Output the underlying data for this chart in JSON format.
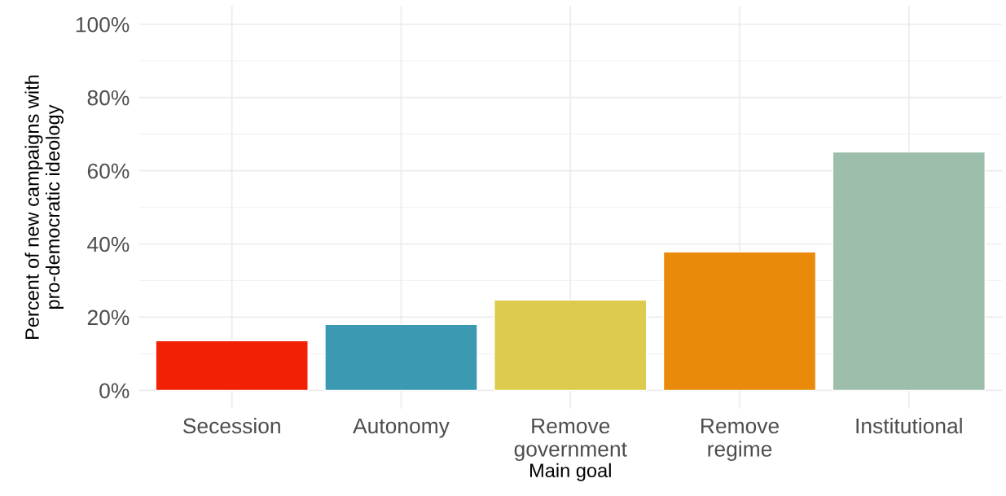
{
  "chart_data": {
    "type": "bar",
    "categories": [
      "Secession",
      "Autonomy",
      "Remove\ngovernment",
      "Remove\nregime",
      "Institutional"
    ],
    "values": [
      13.6,
      18,
      24.7,
      37.8,
      65.1
    ],
    "colors": [
      "#f22005",
      "#3b99b1",
      "#dccb4e",
      "#e98a0b",
      "#9cbeab"
    ],
    "xlabel": "Main goal",
    "ylabel": "Percent of new campaigns with\npro-democratic ideology",
    "ylim": [
      -5,
      105
    ],
    "yticks": [
      {
        "value": 0,
        "label": "0%"
      },
      {
        "value": 20,
        "label": "20%"
      },
      {
        "value": 40,
        "label": "40%"
      },
      {
        "value": 60,
        "label": "60%"
      },
      {
        "value": 80,
        "label": "80%"
      },
      {
        "value": 100,
        "label": "100%"
      }
    ],
    "grid": true,
    "legend": false
  }
}
